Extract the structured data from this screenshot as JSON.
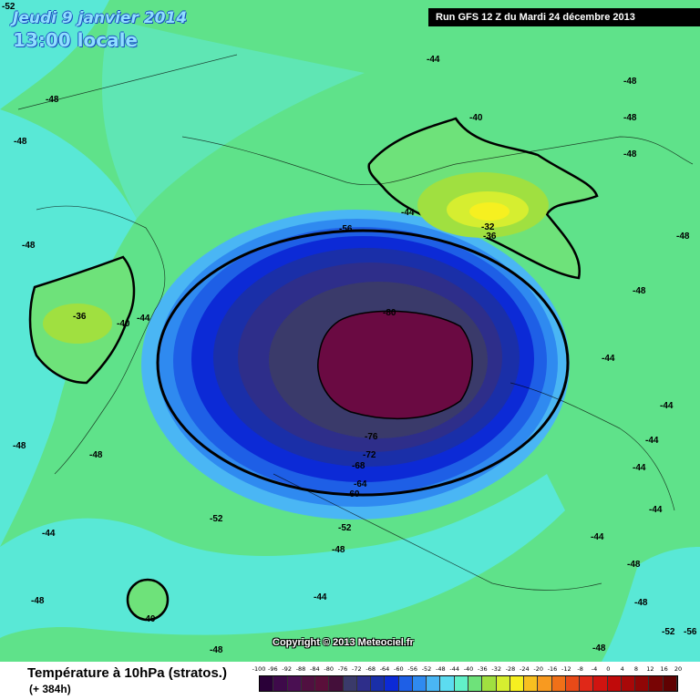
{
  "header": {
    "date": "Jeudi 9 janvier 2014",
    "time": "13:00 locale",
    "run": "Run GFS 12 Z du Mardi 24 décembre 2013"
  },
  "map": {
    "copyright": "Copyright © 2013 Meteociel.fr",
    "contour_labels": [
      "-52",
      "-48",
      "-48",
      "-48",
      "-44",
      "-40",
      "-48",
      "-48",
      "-48",
      "-44",
      "-48",
      "-48",
      "-56",
      "-32",
      "-36",
      "-36",
      "-40",
      "-44",
      "-80",
      "-48",
      "-48",
      "-44",
      "-44",
      "-76",
      "-72",
      "-68",
      "-64",
      "-60",
      "-52",
      "-52",
      "-48",
      "-44",
      "-44",
      "-44",
      "-44",
      "-48",
      "-48",
      "-44",
      "-40",
      "-48",
      "-44",
      "-48",
      "-52",
      "-56",
      "-48"
    ]
  },
  "caption": {
    "title": "Température à 10hPa (stratos.)",
    "subtitle": "(+ 384h)"
  },
  "legend": {
    "labels": [
      "-100",
      "-96",
      "-92",
      "-88",
      "-84",
      "-80",
      "-76",
      "-72",
      "-68",
      "-64",
      "-60",
      "-56",
      "-52",
      "-48",
      "-44",
      "-40",
      "-36",
      "-32",
      "-28",
      "-24",
      "-20",
      "-16",
      "-12",
      "-8",
      "-4",
      "0",
      "4",
      "8",
      "12",
      "16",
      "20"
    ],
    "colors": [
      "#2a0038",
      "#3e0a4a",
      "#4a0f52",
      "#501040",
      "#5a0f3a",
      "#440f3a",
      "#3a3a6a",
      "#2e2e8a",
      "#1a2fa8",
      "#0c2ad6",
      "#1e5fe6",
      "#2f8af0",
      "#4ab6f4",
      "#5cdcf0",
      "#62f0c8",
      "#6ee27a",
      "#a0e040",
      "#d6ee30",
      "#f6f020",
      "#f8c020",
      "#f89a20",
      "#f07018",
      "#e84a18",
      "#e02818",
      "#d01410",
      "#c00a0a",
      "#a80808",
      "#900606",
      "#780404",
      "#600202"
    ]
  }
}
